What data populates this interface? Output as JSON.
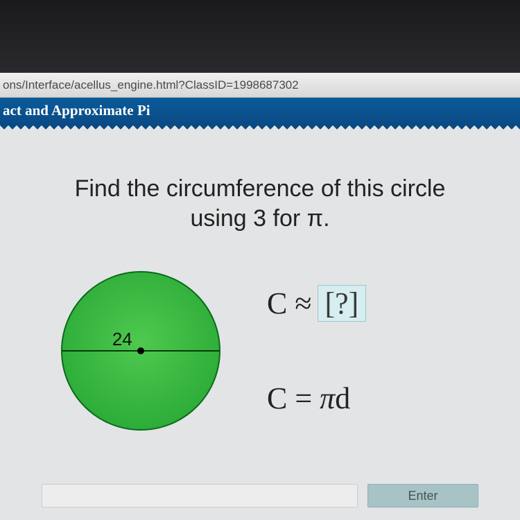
{
  "browser": {
    "url_fragment": "ons/Interface/acellus_engine.html?ClassID=1998687302"
  },
  "header": {
    "title": "act and Approximate Pi",
    "bg_top": "#0a5a9a",
    "bg_bottom": "#0a4a85",
    "color": "#ffffff",
    "fontsize": 21
  },
  "problem": {
    "prompt_line1": "Find the circumference of this circle",
    "prompt_line2": "using 3 for π.",
    "prompt_fontsize": 34,
    "prompt_color": "#222222"
  },
  "circle": {
    "diameter_label": "24",
    "diameter_value": 24,
    "fill_inner": "#4fc94f",
    "fill_mid": "#2fae3a",
    "fill_outer": "#1f9a2f",
    "border_color": "#0a6a1a",
    "line_color": "#053a0a",
    "label_fontsize": 26
  },
  "equations": {
    "answer_line_lhs": "C ≈ ",
    "answer_box_text": "[?]",
    "answer_box_bg": "#d6eef0",
    "answer_box_border": "#9ac8cc",
    "formula": "C = πd",
    "fontsize": 44,
    "color": "#222222"
  },
  "footer": {
    "enter_label": "Enter",
    "enter_bg": "#a7c3c6",
    "enter_color": "#445555"
  }
}
